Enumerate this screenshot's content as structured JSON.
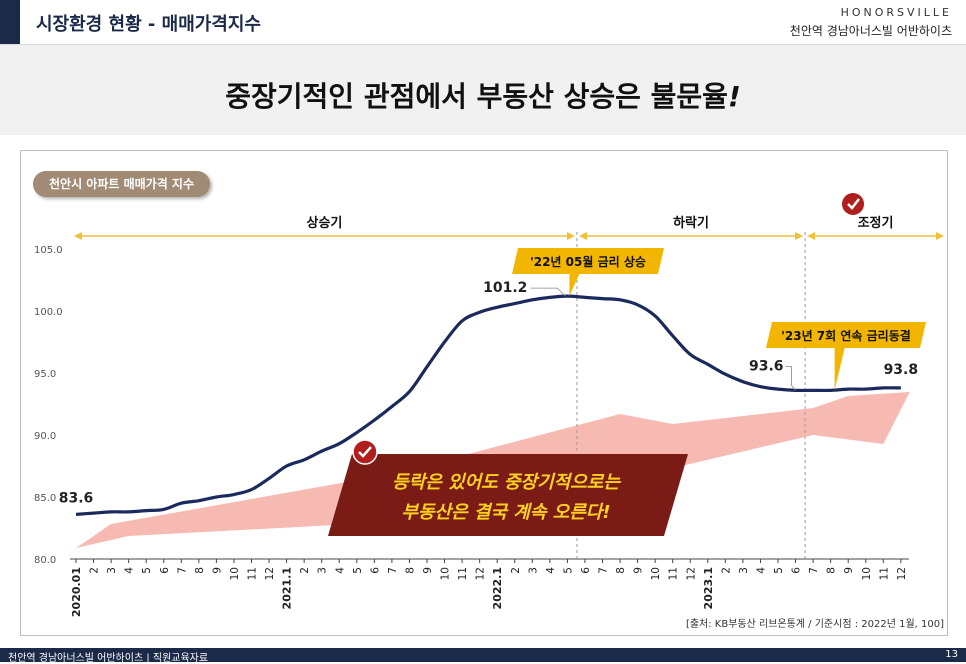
{
  "header": {
    "title": "시장환경 현황 - 매매가격지수",
    "brand_en": "HONORSVILLE",
    "brand_ko": "천안역 경남아너스빌 어반하이츠"
  },
  "headline": "중장기적인 관점에서 부동산 상승은 불문율",
  "headline_mark": "!",
  "chart_tag": "천안시 아파트 매매가격 지수",
  "chart_data": {
    "type": "line",
    "ylim": [
      80,
      105
    ],
    "yticks": [
      "105.0",
      "100.0",
      "95.0",
      "90.0",
      "85.0",
      "80.0"
    ],
    "ytick_values": [
      105,
      100,
      95,
      90,
      85,
      80
    ],
    "xticks": [
      "2020.01",
      "2",
      "3",
      "4",
      "5",
      "6",
      "7",
      "8",
      "9",
      "10",
      "11",
      "12",
      "2021.1",
      "2",
      "3",
      "4",
      "5",
      "6",
      "7",
      "8",
      "9",
      "10",
      "11",
      "12",
      "2022.1",
      "2",
      "3",
      "4",
      "5",
      "6",
      "7",
      "8",
      "9",
      "10",
      "11",
      "12",
      "2023.1",
      "2",
      "3",
      "4",
      "5",
      "6",
      "7",
      "8",
      "9",
      "10",
      "11",
      "12"
    ],
    "values": [
      83.6,
      83.7,
      83.8,
      83.8,
      83.9,
      84.0,
      84.5,
      84.7,
      85.0,
      85.2,
      85.6,
      86.5,
      87.5,
      88.0,
      88.7,
      89.3,
      90.2,
      91.2,
      92.3,
      93.5,
      95.5,
      97.5,
      99.2,
      99.9,
      100.3,
      100.6,
      100.9,
      101.1,
      101.2,
      101.1,
      101.0,
      100.9,
      100.5,
      99.6,
      98.0,
      96.5,
      95.7,
      94.9,
      94.3,
      93.9,
      93.7,
      93.6,
      93.6,
      93.6,
      93.7,
      93.7,
      93.8,
      93.8
    ],
    "labeled_points": [
      {
        "index": 0,
        "label": "83.6"
      },
      {
        "index": 28,
        "label": "101.2"
      },
      {
        "index": 41,
        "label": "93.6"
      },
      {
        "index": 47,
        "label": "93.8"
      }
    ],
    "phases": [
      {
        "label": "상승기",
        "from": 0,
        "to": 29
      },
      {
        "label": "하락기",
        "from": 29,
        "to": 42
      },
      {
        "label": "조정기",
        "from": 42,
        "to": 50
      }
    ],
    "callouts": [
      {
        "text": "'22년 05월 금리 상승",
        "index": 28
      },
      {
        "text": "'23년 7회 연속 금리동결",
        "index": 43
      }
    ],
    "message_line1": "등락은 있어도 중장기적으로는",
    "message_line2": "부동산은 결국 계속 오른다!",
    "source": "[출처: KB부동산 리브온통계 / 기준시점 : 2022년 1월, 100]",
    "line_color": "#1a2a5c",
    "arrow_color": "#f6b3aa",
    "callout_color": "#f2b600",
    "message_bg": "#7a1b16",
    "message_text_color": "#ffd21f",
    "phase_color": "#f2c038"
  },
  "footer": {
    "left": "천안역 경남아너스빌 어반하이츠 | 직원교육자료",
    "page": "13"
  }
}
